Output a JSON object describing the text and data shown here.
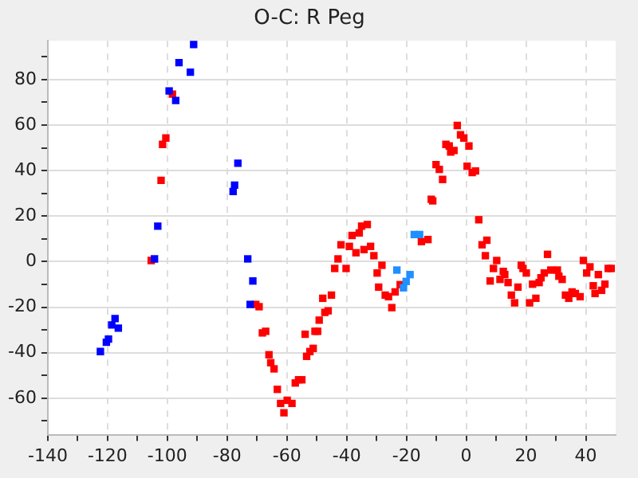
{
  "chart_data": {
    "type": "scatter",
    "title": "O-C: R Peg",
    "xlim": [
      -140,
      50
    ],
    "ylim": [
      -76,
      97
    ],
    "xticks": [
      -140,
      {
        "value": -130,
        "label": null
      },
      -120,
      {
        "value": -110,
        "label": null
      },
      -100,
      {
        "value": -90,
        "label": null
      },
      -80,
      {
        "value": -70,
        "label": null
      },
      -60,
      {
        "value": -50,
        "label": null
      },
      -40,
      {
        "value": -30,
        "label": null
      },
      -20,
      {
        "value": -10,
        "label": null
      },
      0,
      {
        "value": 10,
        "label": null
      },
      20,
      {
        "value": 30,
        "label": null
      },
      40
    ],
    "yticks": [
      {
        "value": -70,
        "label": null
      },
      -60,
      {
        "value": -50,
        "label": null
      },
      -40,
      {
        "value": -30,
        "label": null
      },
      -20,
      {
        "value": -10,
        "label": null
      },
      0,
      {
        "value": 10,
        "label": null
      },
      20,
      {
        "value": 30,
        "label": null
      },
      40,
      {
        "value": 50,
        "label": null
      },
      60,
      {
        "value": 70,
        "label": null
      },
      80,
      {
        "value": 90,
        "label": null
      }
    ],
    "grid": true,
    "marker": "square",
    "legend": false,
    "series": [
      {
        "color": "#0000ff",
        "x": [
          -91.2,
          -96.1,
          -92.3,
          -99.4,
          -97.2,
          -76.4,
          -77.5,
          -78,
          -103.2,
          -104.3,
          -73.1,
          -71.4,
          -72.3,
          -117.5,
          -118.6,
          -116.4,
          -119.7,
          -120.4,
          -122.4
        ],
        "values": [
          95.4,
          87.4,
          83.2,
          75,
          70.8,
          43.2,
          33.6,
          30.8,
          15.6,
          1.2,
          1.2,
          -8.5,
          -18.8,
          -25,
          -27.8,
          -29.2,
          -34,
          -35.4,
          -39.5
        ]
      },
      {
        "color": "#1e90ff",
        "x": [
          -23.2,
          -18.8,
          -20.1,
          -21,
          -17.4,
          -15.6
        ],
        "values": [
          -3.7,
          -5.7,
          -8.7,
          -11.5,
          11.9,
          11.9
        ]
      },
      {
        "color": "#ff0000",
        "x": [
          -98.3,
          -100.5,
          -101.6,
          -102.1,
          -105.4,
          -70.4,
          -69.3,
          -68.2,
          -67.1,
          -66,
          -65.4,
          -64.3,
          -63.2,
          -62.1,
          -61,
          -59.9,
          -58.3,
          -57.2,
          -56.1,
          -55,
          -53.9,
          -53.4,
          -52.3,
          -51.2,
          -50.6,
          -49.7,
          -49.2,
          -47.3,
          -46.2,
          -48,
          -45.1,
          -44,
          -42.9,
          -40.2,
          -41.9,
          -39.1,
          -36.9,
          -34.2,
          -32,
          -30.9,
          -28.2,
          -29.8,
          -29.3,
          -27.1,
          -26,
          -24.9,
          -23.8,
          -22.1,
          -15,
          -12.8,
          -38.2,
          -35.8,
          -35,
          -33.1,
          -3,
          -1.9,
          -0.8,
          -6.8,
          -5.7,
          -4.1,
          -5.2,
          0.9,
          -10.1,
          -9,
          -7.9,
          0.3,
          2,
          3.1,
          -11.7,
          -11.2,
          4.2,
          6.9,
          5.3,
          6.4,
          9.1,
          10.2,
          8,
          11.3,
          12.4,
          12.9,
          14,
          15.1,
          16.2,
          17.3,
          18.4,
          19,
          20.1,
          21.2,
          22.2,
          23.3,
          24.4,
          25,
          26.1,
          27.2,
          28.3,
          30.5,
          31,
          32.1,
          33.2,
          34.3,
          35.4,
          36.5,
          38.1,
          39.2,
          40.3,
          41.4,
          42.5,
          43.1,
          44.2,
          45.3,
          46.4,
          47.5,
          48.5
        ],
        "values": [
          73.6,
          54.3,
          51.5,
          35.7,
          0.5,
          -18.8,
          -19.8,
          -31.3,
          -30.6,
          -40.9,
          -44.4,
          -47.1,
          -56.1,
          -62.3,
          -66.4,
          -60.9,
          -62.3,
          -53.3,
          -51.9,
          -51.9,
          -31.9,
          -41.6,
          -39.5,
          -38.1,
          -30.6,
          -30.6,
          -25.7,
          -22.3,
          -21.6,
          -16.1,
          -14.7,
          -3,
          1.2,
          -3,
          7.4,
          6.7,
          3.9,
          5.3,
          6.7,
          2.6,
          -1.6,
          -5,
          -11.2,
          -14.7,
          -15.4,
          -20.2,
          -13.3,
          -10.1,
          8.8,
          9.7,
          11.5,
          12.6,
          15.6,
          16.3,
          59.8,
          55.7,
          54.3,
          51.5,
          50.8,
          48.8,
          48.1,
          50.8,
          42.6,
          40.5,
          36.1,
          41.9,
          39.1,
          39.8,
          27.4,
          26.7,
          18.4,
          9.4,
          7.4,
          2.6,
          -3,
          0.5,
          -8.5,
          -7.8,
          -4.3,
          -5.7,
          -9.2,
          -14.7,
          -18.1,
          -11.2,
          -1.6,
          -3,
          -5,
          -18.1,
          -9.9,
          -16.1,
          -9.2,
          -7.1,
          -5,
          3.2,
          -3.7,
          -3.7,
          -6.4,
          -7.8,
          -14.7,
          -16.1,
          -13.3,
          -14,
          -15.4,
          0.5,
          -5,
          -2.3,
          -10.6,
          -14,
          -5.7,
          -12.6,
          -9.9,
          -3,
          -3
        ]
      }
    ]
  }
}
